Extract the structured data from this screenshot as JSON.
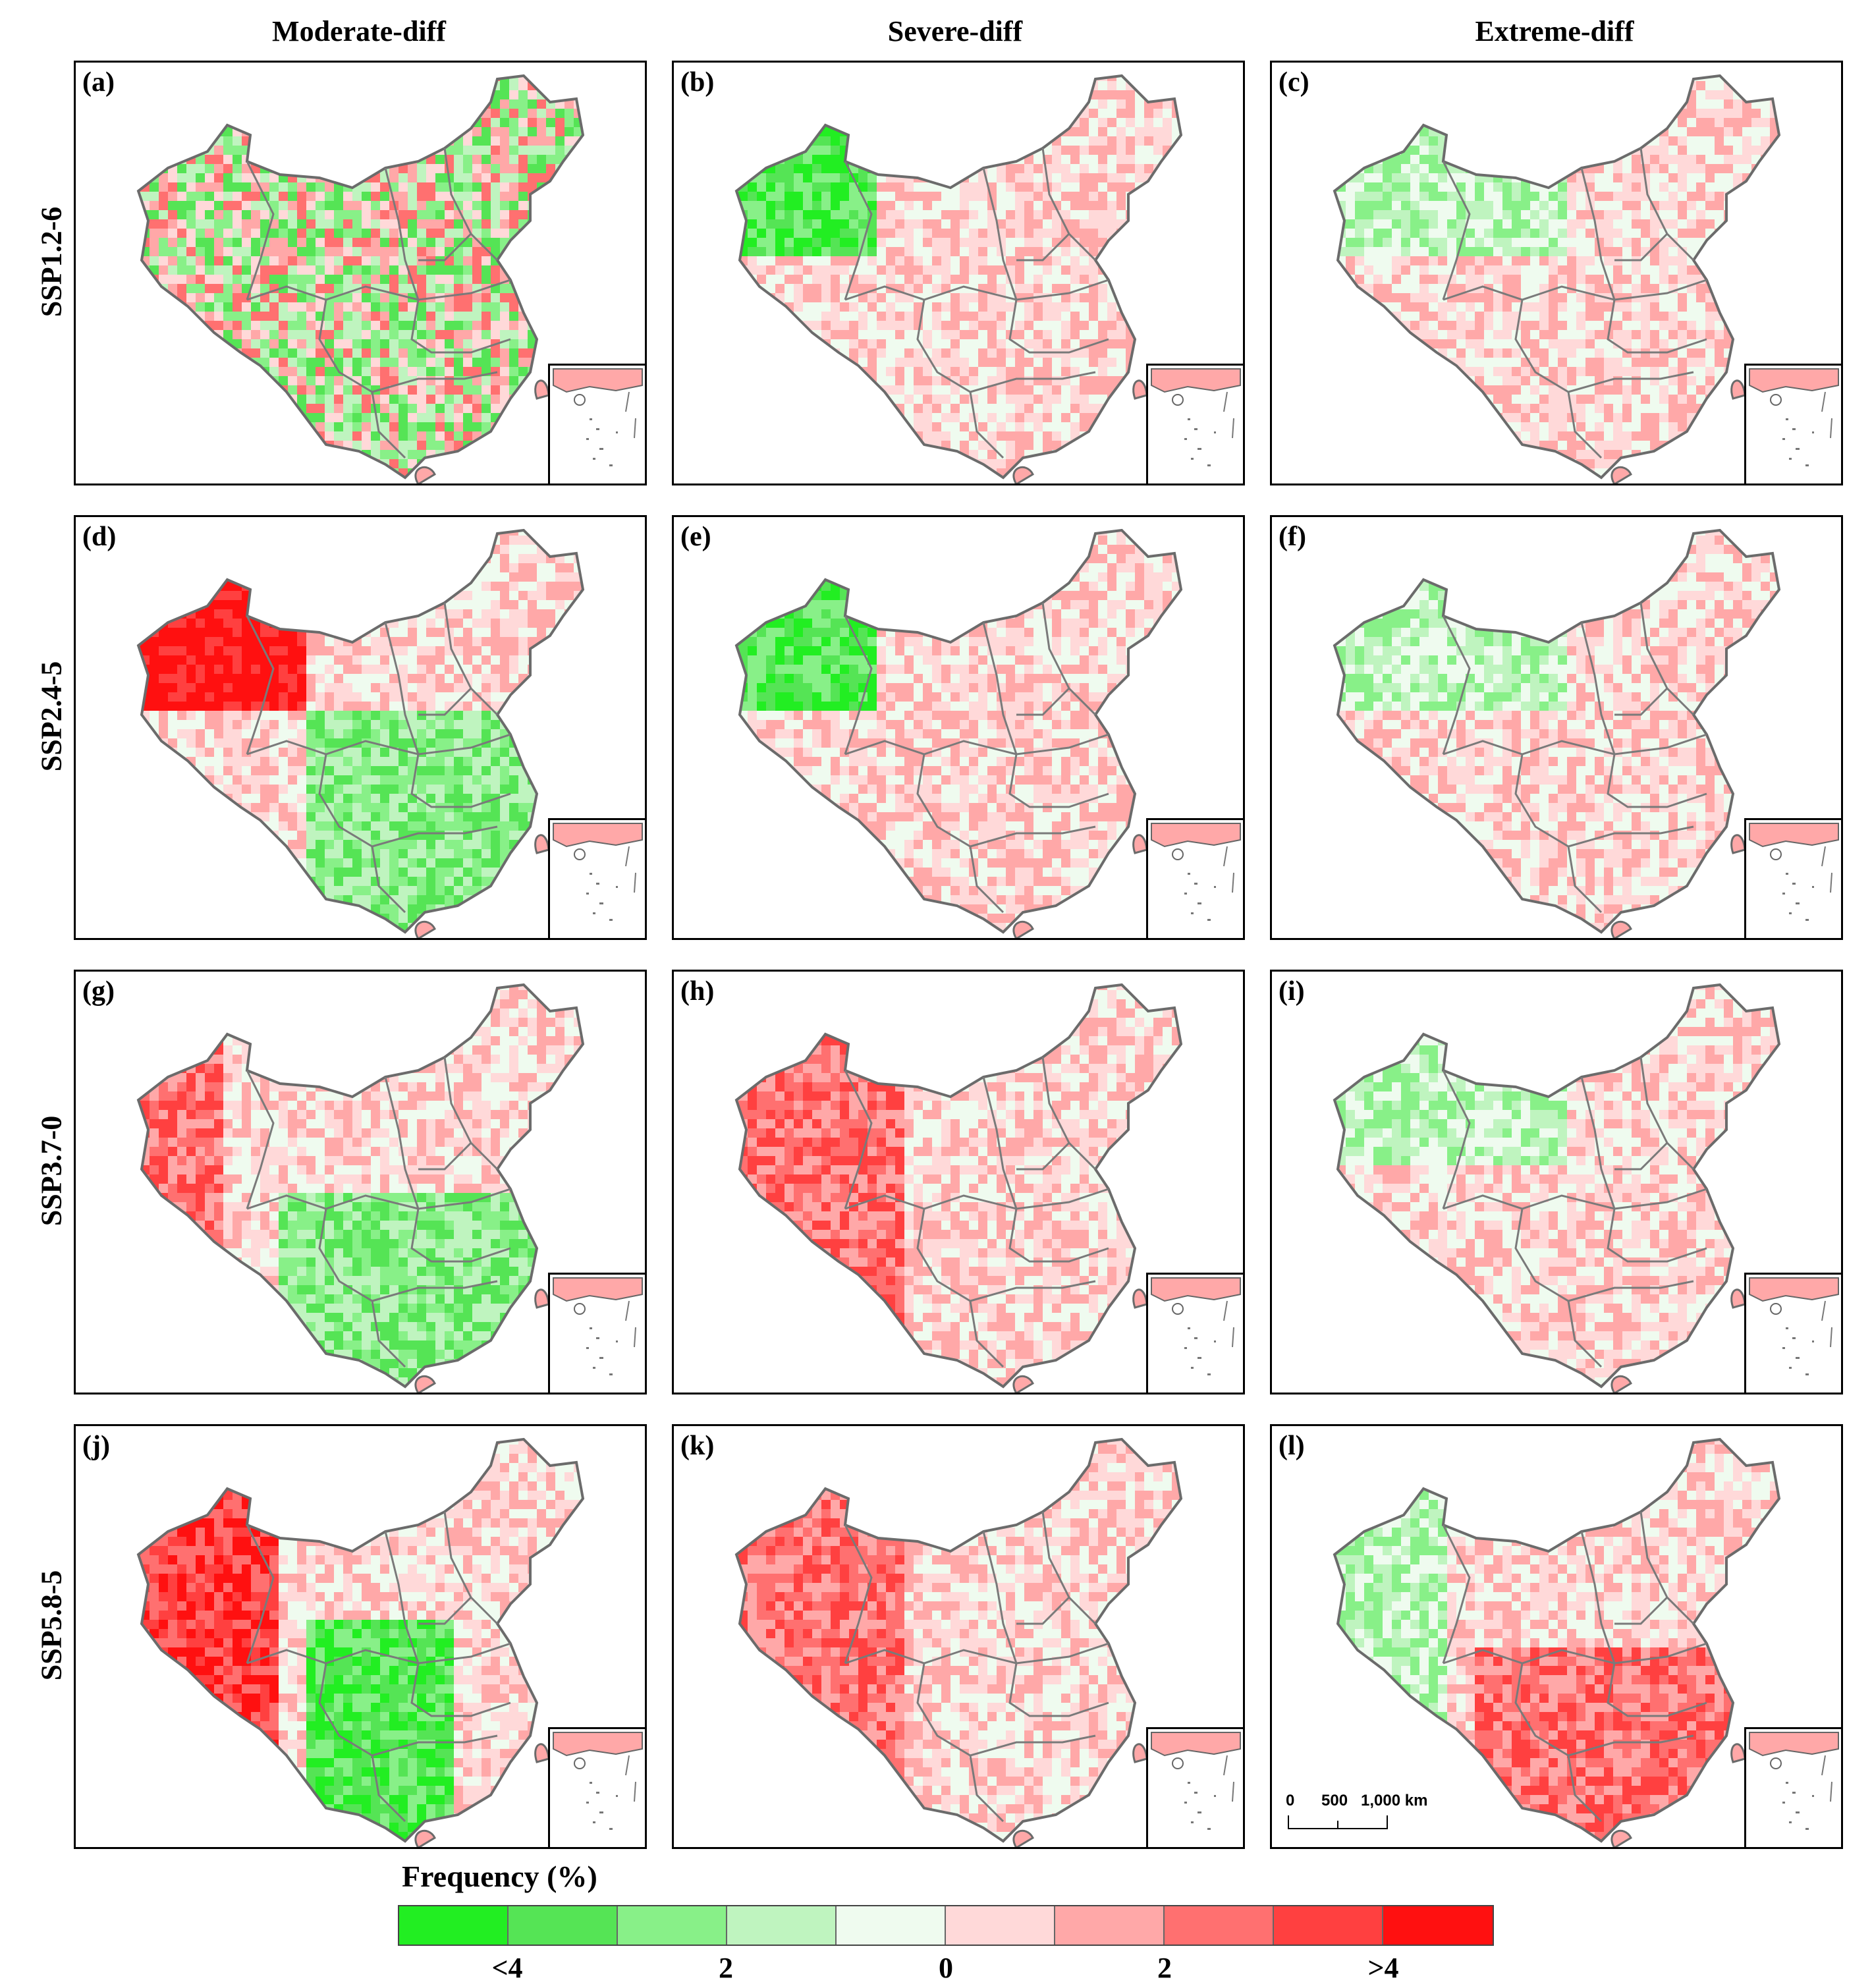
{
  "columns": [
    "Moderate-diff",
    "Severe-diff",
    "Extreme-diff"
  ],
  "rows": [
    "SSP1.2-6",
    "SSP2.4-5",
    "SSP3.7-0",
    "SSP5.8-5"
  ],
  "panels": [
    {
      "letter": "(a)",
      "scenario": "SSP1.2-6",
      "category": "Moderate-diff",
      "pattern": "mixed"
    },
    {
      "letter": "(b)",
      "scenario": "SSP1.2-6",
      "category": "Severe-diff",
      "pattern": "green-northwest"
    },
    {
      "letter": "(c)",
      "scenario": "SSP1.2-6",
      "category": "Extreme-diff",
      "pattern": "pale-red-south"
    },
    {
      "letter": "(d)",
      "scenario": "SSP2.4-5",
      "category": "Moderate-diff",
      "pattern": "red-northwest"
    },
    {
      "letter": "(e)",
      "scenario": "SSP2.4-5",
      "category": "Severe-diff",
      "pattern": "green-northwest"
    },
    {
      "letter": "(f)",
      "scenario": "SSP2.4-5",
      "category": "Extreme-diff",
      "pattern": "pale-red-south"
    },
    {
      "letter": "(g)",
      "scenario": "SSP3.7-0",
      "category": "Moderate-diff",
      "pattern": "mixed-red-west"
    },
    {
      "letter": "(h)",
      "scenario": "SSP3.7-0",
      "category": "Severe-diff",
      "pattern": "red-west"
    },
    {
      "letter": "(i)",
      "scenario": "SSP3.7-0",
      "category": "Extreme-diff",
      "pattern": "pale-red-south"
    },
    {
      "letter": "(j)",
      "scenario": "SSP5.8-5",
      "category": "Moderate-diff",
      "pattern": "red-west-green-center"
    },
    {
      "letter": "(k)",
      "scenario": "SSP5.8-5",
      "category": "Severe-diff",
      "pattern": "red-west"
    },
    {
      "letter": "(l)",
      "scenario": "SSP5.8-5",
      "category": "Extreme-diff",
      "pattern": "red-south"
    }
  ],
  "scale_bar": {
    "labels": [
      "0",
      "500",
      "1,000 km"
    ]
  },
  "legend": {
    "title": "Frequency (%)",
    "colors": [
      "#22ee22",
      "#55e455",
      "#88f088",
      "#bff4bf",
      "#effbef",
      "#ffd9d9",
      "#ffa8a8",
      "#ff7070",
      "#ff4040",
      "#ff1010"
    ],
    "tick_labels": [
      "<4",
      "2",
      "0",
      "2",
      ">4"
    ]
  }
}
